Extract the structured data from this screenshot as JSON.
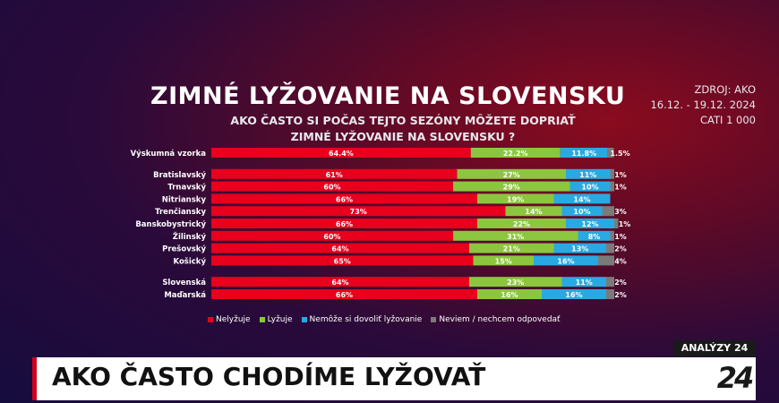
{
  "header": {
    "title": "ZIMNÉ LYŽOVANIE NA SLOVENSKU",
    "subtitle_line1": "AKO ČASTO SI POČAS TEJTO SEZÓNY MÔŽETE DOPRIAŤ",
    "subtitle_line2": "ZIMNÉ LYŽOVANIE NA SLOVENSKU ?",
    "source_line1": "ZDROJ: AKO",
    "source_line2": "16.12. - 19.12. 2024",
    "source_line3": "CATI 1 000"
  },
  "legend": {
    "nelyzuje": "Nelyžuje",
    "lyzuje": "Lyžuje",
    "nemoze": "Nemôže si dovoliť lyžovanie",
    "neviem": "Neviem / nechcem odpovedať"
  },
  "colors": {
    "red": "#e8001c",
    "green": "#8cc63f",
    "blue": "#29a9e1",
    "grey": "#7a7a7a"
  },
  "chart_data": {
    "type": "bar",
    "orientation": "horizontal",
    "stacked": true,
    "categories": [
      "Výskumná vzorka",
      "Bratislavský",
      "Trnavský",
      "Nitriansky",
      "Trenčiansky",
      "Banskobystrický",
      "Žilinský",
      "Prešovský",
      "Košický",
      "Slovenská",
      "Maďarská"
    ],
    "group_breaks_after": [
      0,
      8
    ],
    "labels": {
      "nelyzuje": [
        "64.4%",
        "61%",
        "60%",
        "66%",
        "73%",
        "66%",
        "60%",
        "64%",
        "65%",
        "64%",
        "66%"
      ],
      "lyzuje": [
        "22.2%",
        "27%",
        "29%",
        "19%",
        "14%",
        "22%",
        "31%",
        "21%",
        "15%",
        "23%",
        "16%"
      ],
      "nemoze": [
        "11.8%",
        "11%",
        "10%",
        "14%",
        "10%",
        "12%",
        "8%",
        "13%",
        "16%",
        "11%",
        "16%"
      ],
      "neviem": [
        "1.5%",
        "1%",
        "1%",
        "",
        "3%",
        "1%",
        "1%",
        "2%",
        "4%",
        "2%",
        "2%"
      ]
    },
    "series": [
      {
        "name": "Nelyžuje",
        "values": [
          64.4,
          61,
          60,
          66,
          73,
          66,
          60,
          64,
          65,
          64,
          66
        ]
      },
      {
        "name": "Lyžuje",
        "values": [
          22.2,
          27,
          29,
          19,
          14,
          22,
          31,
          21,
          15,
          23,
          16
        ]
      },
      {
        "name": "Nemôže si dovoliť lyžovanie",
        "values": [
          11.8,
          11,
          10,
          14,
          10,
          12,
          8,
          13,
          16,
          11,
          16
        ]
      },
      {
        "name": "Neviem / nechcem odpovedať",
        "values": [
          1.5,
          1,
          1,
          0,
          3,
          1,
          1,
          2,
          4,
          2,
          2
        ]
      }
    ],
    "xlim": [
      0,
      100
    ]
  },
  "footer": {
    "brand_tag": "ANALÝZY 24",
    "headline": "AKO ČASTO CHODÍME LYŽOVAŤ",
    "logo": "24"
  }
}
